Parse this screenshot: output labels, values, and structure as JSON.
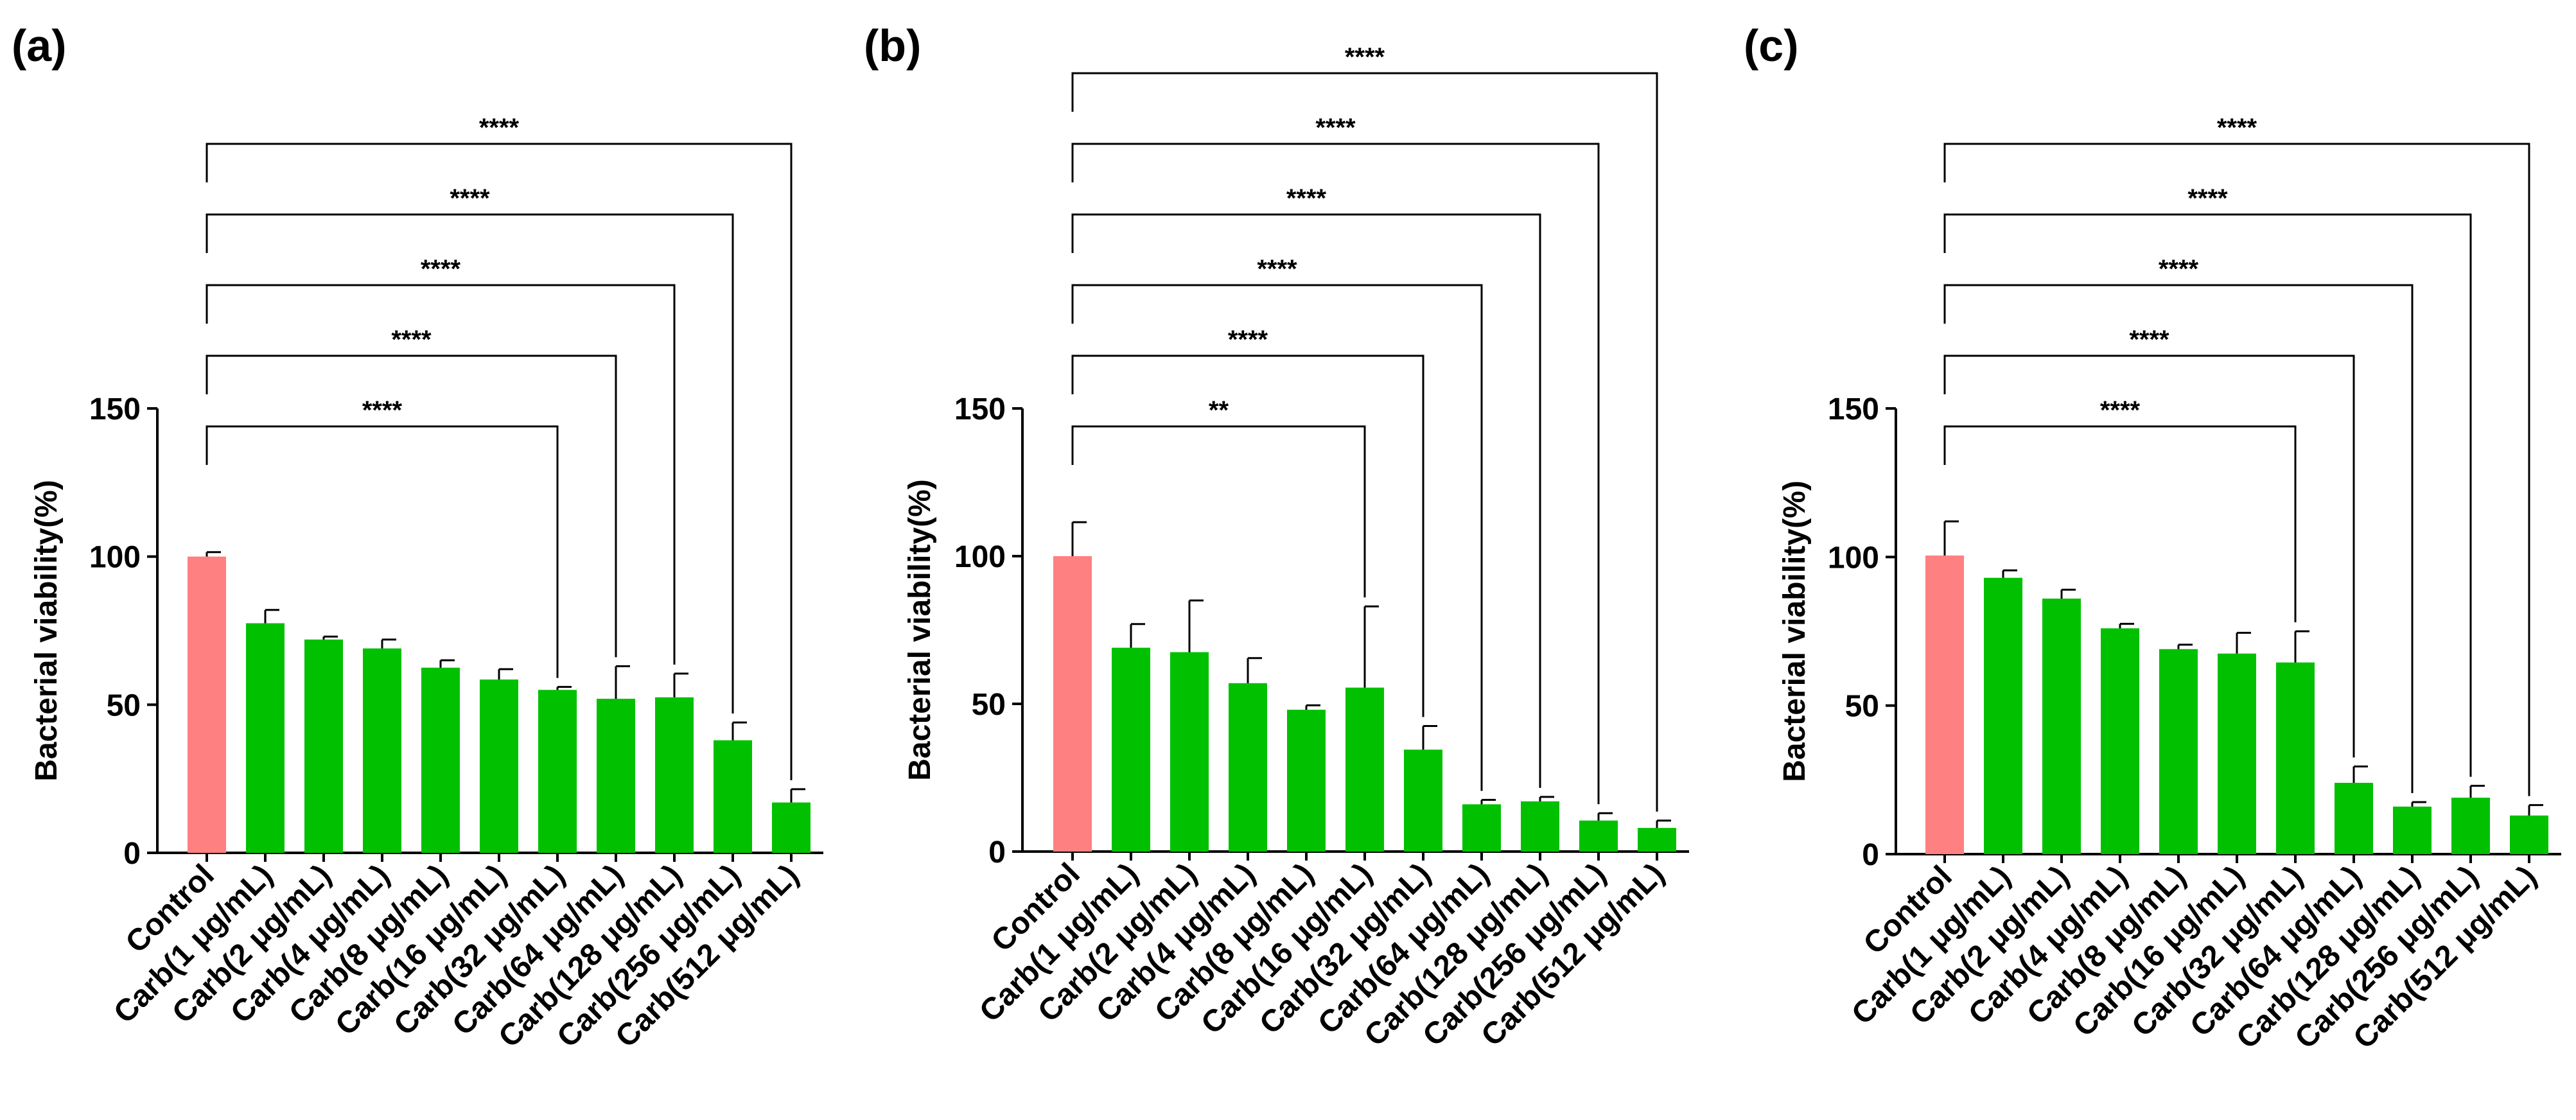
{
  "figure": {
    "panel_labels": [
      "(a)",
      "(b)",
      "(c)"
    ]
  },
  "colors": {
    "control": "#FF8080",
    "treatment": "#00C000",
    "axis": "#000000"
  },
  "chart_data": [
    {
      "type": "bar",
      "panel": "(a)",
      "ylabel": "Bacterial viability(%)",
      "xlabel": "",
      "ylim": [
        0,
        150
      ],
      "yticks": [
        0,
        50,
        100,
        150
      ],
      "categories": [
        "Control",
        "Carb(1 μg/mL)",
        "Carb(2 μg/mL)",
        "Carb(4 μg/mL)",
        "Carb(8 μg/mL)",
        "Carb(16 μg/mL)",
        "Carb(32 μg/mL)",
        "Carb(64 μg/mL)",
        "Carb(128 μg/mL)",
        "Carb(256 μg/mL)",
        "Carb(512 μg/mL)"
      ],
      "values": [
        100,
        77.5,
        72,
        69,
        62.5,
        58.5,
        55,
        52,
        52.5,
        38,
        17
      ],
      "errors": [
        1.5,
        4.5,
        1,
        3,
        2.5,
        3.5,
        1,
        11,
        8,
        6,
        4.5
      ],
      "comparisons": [
        {
          "from": 0,
          "to": 6,
          "label": "****"
        },
        {
          "from": 0,
          "to": 7,
          "label": "****"
        },
        {
          "from": 0,
          "to": 8,
          "label": "****"
        },
        {
          "from": 0,
          "to": 9,
          "label": "****"
        },
        {
          "from": 0,
          "to": 10,
          "label": "****"
        }
      ]
    },
    {
      "type": "bar",
      "panel": "(b)",
      "ylabel": "Bacterial viability(%)",
      "xlabel": "",
      "ylim": [
        0,
        150
      ],
      "yticks": [
        0,
        50,
        100,
        150
      ],
      "categories": [
        "Control",
        "Carb(1 μg/mL)",
        "Carb(2 μg/mL)",
        "Carb(4 μg/mL)",
        "Carb(8 μg/mL)",
        "Carb(16 μg/mL)",
        "Carb(32 μg/mL)",
        "Carb(64 μg/mL)",
        "Carb(128 μg/mL)",
        "Carb(256 μg/mL)",
        "Carb(512 μg/mL)"
      ],
      "values": [
        100,
        69,
        67.5,
        57,
        48,
        55.5,
        34.5,
        16,
        17,
        10.5,
        8
      ],
      "errors": [
        11.5,
        8,
        17.5,
        8.5,
        1.5,
        27.5,
        8,
        1.5,
        1.5,
        2.5,
        2.5
      ],
      "comparisons": [
        {
          "from": 0,
          "to": 5,
          "label": "**"
        },
        {
          "from": 0,
          "to": 6,
          "label": "****"
        },
        {
          "from": 0,
          "to": 7,
          "label": "****"
        },
        {
          "from": 0,
          "to": 8,
          "label": "****"
        },
        {
          "from": 0,
          "to": 9,
          "label": "****"
        },
        {
          "from": 0,
          "to": 10,
          "label": "****"
        }
      ]
    },
    {
      "type": "bar",
      "panel": "(c)",
      "ylabel": "Bacterial viability(%)",
      "xlabel": "",
      "ylim": [
        0,
        150
      ],
      "yticks": [
        0,
        50,
        100,
        150
      ],
      "categories": [
        "Control",
        "Carb(1 μg/mL)",
        "Carb(2 μg/mL)",
        "Carb(4 μg/mL)",
        "Carb(8 μg/mL)",
        "Carb(16 μg/mL)",
        "Carb(32 μg/mL)",
        "Carb(64 μg/mL)",
        "Carb(128 μg/mL)",
        "Carb(256 μg/mL)",
        "Carb(512 μg/mL)"
      ],
      "values": [
        100.5,
        93,
        86,
        76,
        69,
        67.5,
        64.5,
        24,
        16,
        19,
        13
      ],
      "errors": [
        11.5,
        2.5,
        3,
        1.5,
        1.5,
        7,
        10.5,
        5.5,
        1.5,
        4,
        3.5
      ],
      "comparisons": [
        {
          "from": 0,
          "to": 6,
          "label": "****"
        },
        {
          "from": 0,
          "to": 7,
          "label": "****"
        },
        {
          "from": 0,
          "to": 8,
          "label": "****"
        },
        {
          "from": 0,
          "to": 9,
          "label": "****"
        },
        {
          "from": 0,
          "to": 10,
          "label": "****"
        }
      ]
    }
  ]
}
